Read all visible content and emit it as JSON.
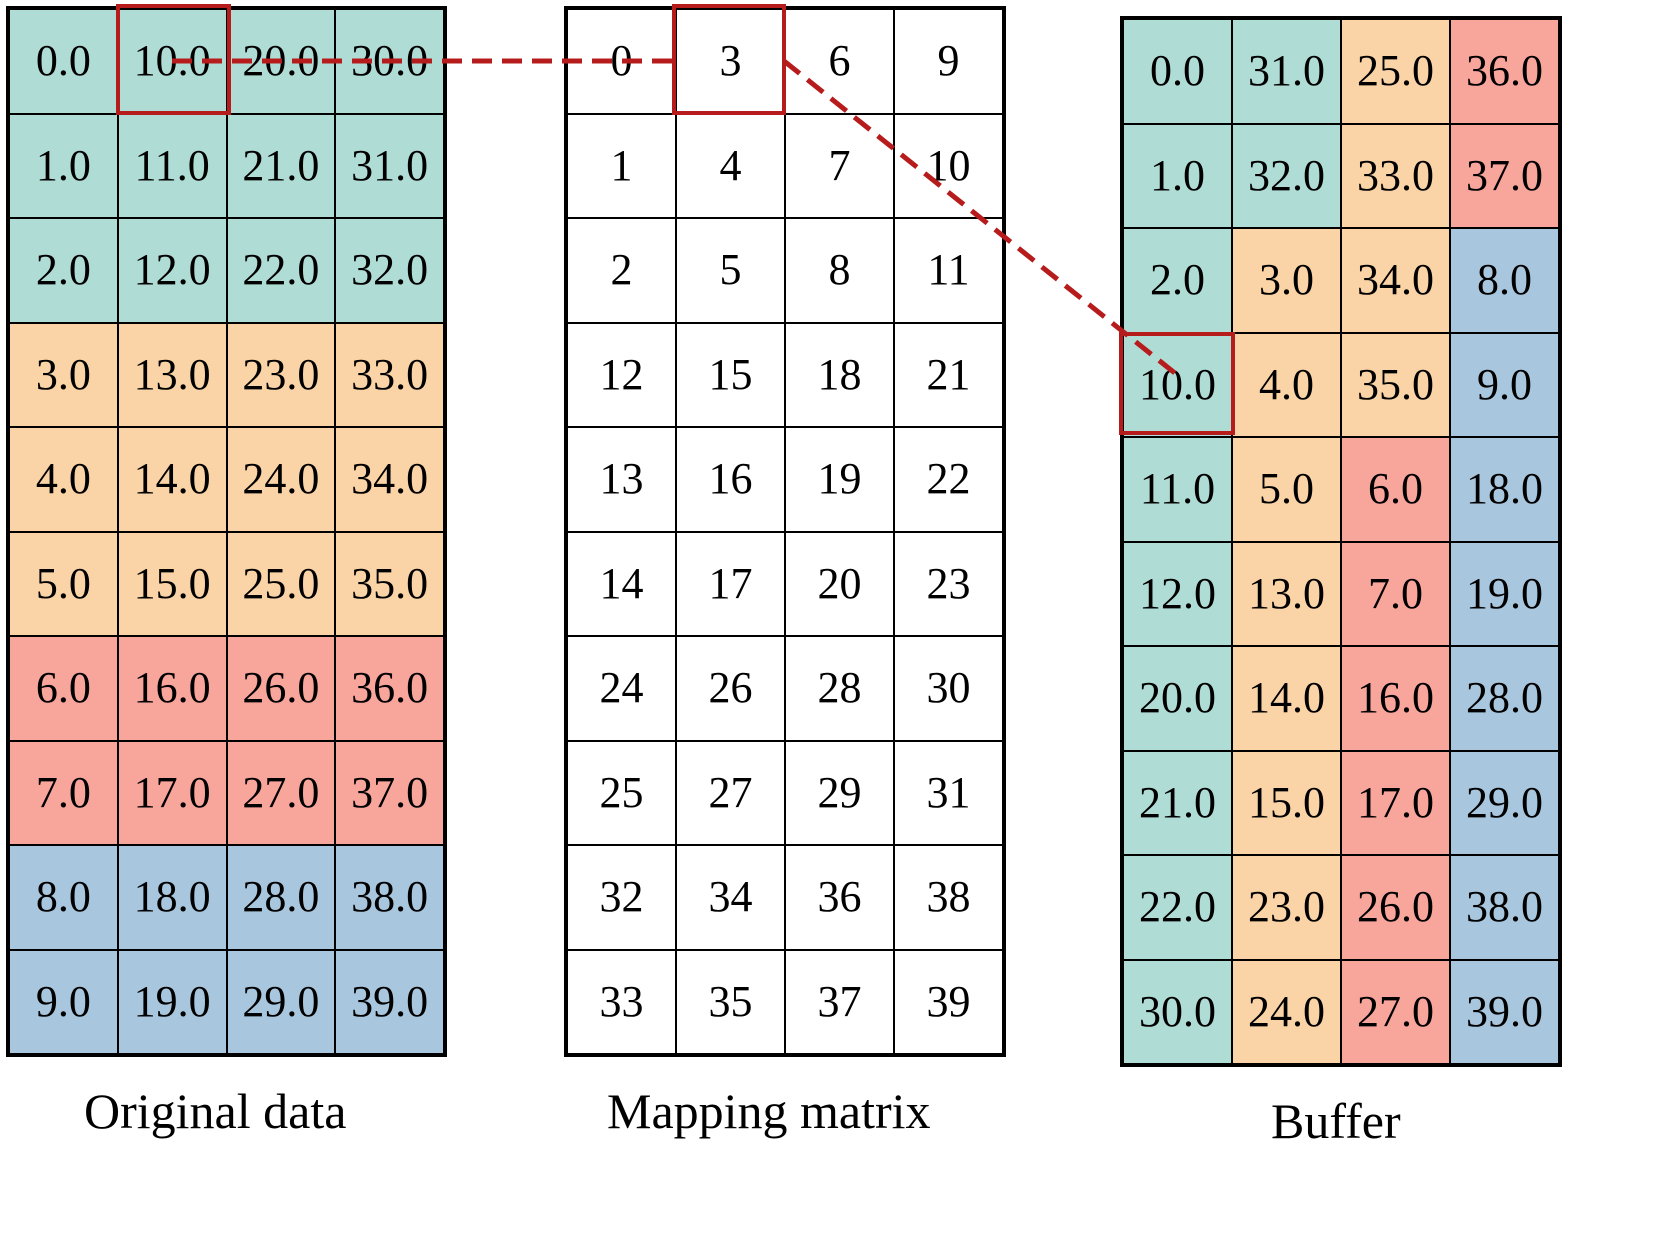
{
  "colors": {
    "teal": "#b0dcd6",
    "orange": "#fad3a6",
    "red": "#f8a59c",
    "blue": "#a8c6de",
    "white": "#ffffff",
    "highlight": "#b71c1c"
  },
  "original_data": {
    "caption": "Original data",
    "rows": [
      [
        {
          "v": "0.0",
          "c": "teal"
        },
        {
          "v": "10.0",
          "c": "teal"
        },
        {
          "v": "20.0",
          "c": "teal"
        },
        {
          "v": "30.0",
          "c": "teal"
        }
      ],
      [
        {
          "v": "1.0",
          "c": "teal"
        },
        {
          "v": "11.0",
          "c": "teal"
        },
        {
          "v": "21.0",
          "c": "teal"
        },
        {
          "v": "31.0",
          "c": "teal"
        }
      ],
      [
        {
          "v": "2.0",
          "c": "teal"
        },
        {
          "v": "12.0",
          "c": "teal"
        },
        {
          "v": "22.0",
          "c": "teal"
        },
        {
          "v": "32.0",
          "c": "teal"
        }
      ],
      [
        {
          "v": "3.0",
          "c": "orange"
        },
        {
          "v": "13.0",
          "c": "orange"
        },
        {
          "v": "23.0",
          "c": "orange"
        },
        {
          "v": "33.0",
          "c": "orange"
        }
      ],
      [
        {
          "v": "4.0",
          "c": "orange"
        },
        {
          "v": "14.0",
          "c": "orange"
        },
        {
          "v": "24.0",
          "c": "orange"
        },
        {
          "v": "34.0",
          "c": "orange"
        }
      ],
      [
        {
          "v": "5.0",
          "c": "orange"
        },
        {
          "v": "15.0",
          "c": "orange"
        },
        {
          "v": "25.0",
          "c": "orange"
        },
        {
          "v": "35.0",
          "c": "orange"
        }
      ],
      [
        {
          "v": "6.0",
          "c": "red"
        },
        {
          "v": "16.0",
          "c": "red"
        },
        {
          "v": "26.0",
          "c": "red"
        },
        {
          "v": "36.0",
          "c": "red"
        }
      ],
      [
        {
          "v": "7.0",
          "c": "red"
        },
        {
          "v": "17.0",
          "c": "red"
        },
        {
          "v": "27.0",
          "c": "red"
        },
        {
          "v": "37.0",
          "c": "red"
        }
      ],
      [
        {
          "v": "8.0",
          "c": "blue"
        },
        {
          "v": "18.0",
          "c": "blue"
        },
        {
          "v": "28.0",
          "c": "blue"
        },
        {
          "v": "38.0",
          "c": "blue"
        }
      ],
      [
        {
          "v": "9.0",
          "c": "blue"
        },
        {
          "v": "19.0",
          "c": "blue"
        },
        {
          "v": "29.0",
          "c": "blue"
        },
        {
          "v": "39.0",
          "c": "blue"
        }
      ]
    ]
  },
  "mapping_matrix": {
    "caption": "Mapping matrix",
    "rows": [
      [
        {
          "v": "0",
          "c": "white"
        },
        {
          "v": "3",
          "c": "white"
        },
        {
          "v": "6",
          "c": "white"
        },
        {
          "v": "9",
          "c": "white"
        }
      ],
      [
        {
          "v": "1",
          "c": "white"
        },
        {
          "v": "4",
          "c": "white"
        },
        {
          "v": "7",
          "c": "white"
        },
        {
          "v": "10",
          "c": "white"
        }
      ],
      [
        {
          "v": "2",
          "c": "white"
        },
        {
          "v": "5",
          "c": "white"
        },
        {
          "v": "8",
          "c": "white"
        },
        {
          "v": "11",
          "c": "white"
        }
      ],
      [
        {
          "v": "12",
          "c": "white"
        },
        {
          "v": "15",
          "c": "white"
        },
        {
          "v": "18",
          "c": "white"
        },
        {
          "v": "21",
          "c": "white"
        }
      ],
      [
        {
          "v": "13",
          "c": "white"
        },
        {
          "v": "16",
          "c": "white"
        },
        {
          "v": "19",
          "c": "white"
        },
        {
          "v": "22",
          "c": "white"
        }
      ],
      [
        {
          "v": "14",
          "c": "white"
        },
        {
          "v": "17",
          "c": "white"
        },
        {
          "v": "20",
          "c": "white"
        },
        {
          "v": "23",
          "c": "white"
        }
      ],
      [
        {
          "v": "24",
          "c": "white"
        },
        {
          "v": "26",
          "c": "white"
        },
        {
          "v": "28",
          "c": "white"
        },
        {
          "v": "30",
          "c": "white"
        }
      ],
      [
        {
          "v": "25",
          "c": "white"
        },
        {
          "v": "27",
          "c": "white"
        },
        {
          "v": "29",
          "c": "white"
        },
        {
          "v": "31",
          "c": "white"
        }
      ],
      [
        {
          "v": "32",
          "c": "white"
        },
        {
          "v": "34",
          "c": "white"
        },
        {
          "v": "36",
          "c": "white"
        },
        {
          "v": "38",
          "c": "white"
        }
      ],
      [
        {
          "v": "33",
          "c": "white"
        },
        {
          "v": "35",
          "c": "white"
        },
        {
          "v": "37",
          "c": "white"
        },
        {
          "v": "39",
          "c": "white"
        }
      ]
    ]
  },
  "buffer": {
    "caption": "Buffer",
    "rows": [
      [
        {
          "v": "0.0",
          "c": "teal"
        },
        {
          "v": "31.0",
          "c": "teal"
        },
        {
          "v": "25.0",
          "c": "orange"
        },
        {
          "v": "36.0",
          "c": "red"
        }
      ],
      [
        {
          "v": "1.0",
          "c": "teal"
        },
        {
          "v": "32.0",
          "c": "teal"
        },
        {
          "v": "33.0",
          "c": "orange"
        },
        {
          "v": "37.0",
          "c": "red"
        }
      ],
      [
        {
          "v": "2.0",
          "c": "teal"
        },
        {
          "v": "3.0",
          "c": "orange"
        },
        {
          "v": "34.0",
          "c": "orange"
        },
        {
          "v": "8.0",
          "c": "blue"
        }
      ],
      [
        {
          "v": "10.0",
          "c": "teal"
        },
        {
          "v": "4.0",
          "c": "orange"
        },
        {
          "v": "35.0",
          "c": "orange"
        },
        {
          "v": "9.0",
          "c": "blue"
        }
      ],
      [
        {
          "v": "11.0",
          "c": "teal"
        },
        {
          "v": "5.0",
          "c": "orange"
        },
        {
          "v": "6.0",
          "c": "red"
        },
        {
          "v": "18.0",
          "c": "blue"
        }
      ],
      [
        {
          "v": "12.0",
          "c": "teal"
        },
        {
          "v": "13.0",
          "c": "orange"
        },
        {
          "v": "7.0",
          "c": "red"
        },
        {
          "v": "19.0",
          "c": "blue"
        }
      ],
      [
        {
          "v": "20.0",
          "c": "teal"
        },
        {
          "v": "14.0",
          "c": "orange"
        },
        {
          "v": "16.0",
          "c": "red"
        },
        {
          "v": "28.0",
          "c": "blue"
        }
      ],
      [
        {
          "v": "21.0",
          "c": "teal"
        },
        {
          "v": "15.0",
          "c": "orange"
        },
        {
          "v": "17.0",
          "c": "red"
        },
        {
          "v": "29.0",
          "c": "blue"
        }
      ],
      [
        {
          "v": "22.0",
          "c": "teal"
        },
        {
          "v": "23.0",
          "c": "orange"
        },
        {
          "v": "26.0",
          "c": "red"
        },
        {
          "v": "38.0",
          "c": "blue"
        }
      ],
      [
        {
          "v": "30.0",
          "c": "teal"
        },
        {
          "v": "24.0",
          "c": "orange"
        },
        {
          "v": "27.0",
          "c": "red"
        },
        {
          "v": "39.0",
          "c": "blue"
        }
      ]
    ]
  },
  "highlights": {
    "original_cell": {
      "row": 0,
      "col": 1
    },
    "mapping_cell": {
      "row": 0,
      "col": 1
    },
    "buffer_cell": {
      "row": 3,
      "col": 0
    }
  }
}
